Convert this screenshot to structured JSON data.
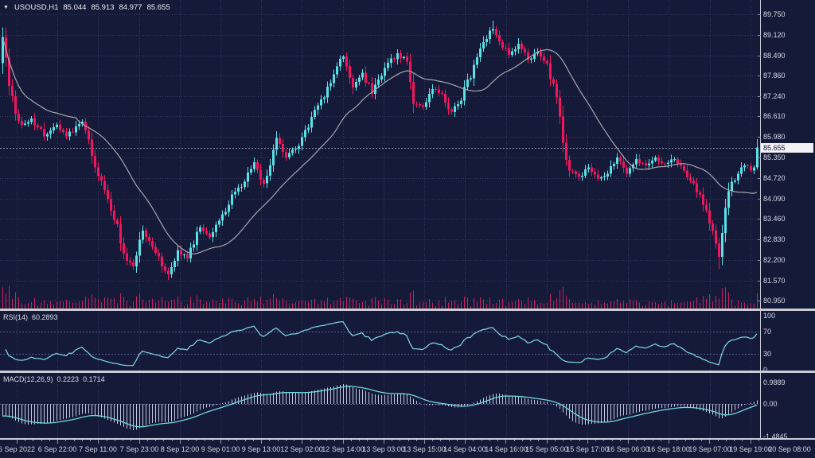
{
  "title": {
    "symbol_tf": "USOUSD,H1",
    "open": "85.044",
    "high": "85.913",
    "low": "84.977",
    "close": "85.655"
  },
  "price_axis": {
    "labels": [
      "89.750",
      "89.120",
      "88.490",
      "87.860",
      "87.240",
      "86.610",
      "85.980",
      "85.350",
      "84.720",
      "84.090",
      "83.460",
      "82.830",
      "82.200",
      "81.570",
      "80.950"
    ],
    "current": "85.655"
  },
  "rsi_pane": {
    "name": "RSI(14)",
    "value": "60.2893",
    "ticks": [
      "100",
      "70",
      "30",
      "0"
    ]
  },
  "macd_pane": {
    "name": "MACD(12,26,9)",
    "value1": "0.2223",
    "value2": "0.1714",
    "ticks": [
      "0.9889",
      "0.00",
      "-1.4845"
    ]
  },
  "time_axis": {
    "labels": [
      "6 Sep 2022",
      "6 Sep 22:00",
      "7 Sep 11:00",
      "7 Sep 23:00",
      "8 Sep 12:00",
      "9 Sep 01:00",
      "9 Sep 13:00",
      "12 Sep 02:00",
      "12 Sep 14:00",
      "13 Sep 03:00",
      "13 Sep 15:00",
      "14 Sep 04:00",
      "14 Sep 16:00",
      "15 Sep 05:00",
      "15 Sep 17:00",
      "16 Sep 06:00",
      "16 Sep 18:00",
      "19 Sep 07:00",
      "19 Sep 19:00",
      "20 Sep 08:00"
    ]
  },
  "colors": {
    "background": "#151a38",
    "grid": "#363c63",
    "bull": "#58e2e6",
    "bear": "#f1175e",
    "ma_line": "#a7a7b0",
    "rsi_line": "#7fdce8",
    "macd_signal": "#6fd8dc",
    "macd_histogram": "#c3c8de",
    "volume": "#cb2160",
    "level_line": "#5a6088",
    "price_line": "#8c92ac",
    "separator": "#c9cbd6",
    "axis_text": "#d6d8e4",
    "price_tag_bg": "#f2f2f5",
    "price_tag_text": "#131735"
  },
  "chart_data": {
    "type": "candlestick",
    "symbol": "USOUSD",
    "timeframe": "H1",
    "title": "USOUSD,H1 85.044 85.913 84.977 85.655",
    "ylim": [
      80.7,
      90.19
    ],
    "price_ticks": [
      89.75,
      89.12,
      88.49,
      87.86,
      87.24,
      86.61,
      85.98,
      85.35,
      84.72,
      84.09,
      83.46,
      82.83,
      82.2,
      81.57,
      80.95
    ],
    "current_price": 85.655,
    "x_labels": [
      "6 Sep 2022",
      "6 Sep 22:00",
      "7 Sep 11:00",
      "7 Sep 23:00",
      "8 Sep 12:00",
      "9 Sep 01:00",
      "9 Sep 13:00",
      "12 Sep 02:00",
      "12 Sep 14:00",
      "13 Sep 03:00",
      "13 Sep 15:00",
      "14 Sep 04:00",
      "14 Sep 16:00",
      "15 Sep 05:00",
      "15 Sep 17:00",
      "16 Sep 06:00",
      "16 Sep 18:00",
      "19 Sep 07:00",
      "19 Sep 19:00",
      "20 Sep 08:00"
    ],
    "candle_count": 238,
    "last_candle": {
      "open": 85.044,
      "high": 85.913,
      "low": 84.977,
      "close": 85.655
    },
    "close_anchors": [
      [
        0,
        89.05
      ],
      [
        2,
        87.55
      ],
      [
        4,
        86.7
      ],
      [
        6,
        86.35
      ],
      [
        9,
        86.55
      ],
      [
        13,
        86.0
      ],
      [
        17,
        86.35
      ],
      [
        20,
        86.0
      ],
      [
        25,
        86.45
      ],
      [
        28,
        85.4
      ],
      [
        32,
        84.35
      ],
      [
        36,
        83.3
      ],
      [
        38,
        82.4
      ],
      [
        41,
        82.0
      ],
      [
        44,
        83.1
      ],
      [
        47,
        82.6
      ],
      [
        50,
        82.0
      ],
      [
        52,
        81.75
      ],
      [
        55,
        82.5
      ],
      [
        58,
        82.25
      ],
      [
        62,
        83.2
      ],
      [
        65,
        82.9
      ],
      [
        69,
        83.6
      ],
      [
        73,
        84.3
      ],
      [
        76,
        84.6
      ],
      [
        79,
        85.2
      ],
      [
        82,
        84.55
      ],
      [
        86,
        85.95
      ],
      [
        89,
        85.35
      ],
      [
        93,
        85.7
      ],
      [
        97,
        86.6
      ],
      [
        101,
        87.2
      ],
      [
        104,
        87.9
      ],
      [
        107,
        88.45
      ],
      [
        110,
        87.5
      ],
      [
        113,
        87.95
      ],
      [
        116,
        87.3
      ],
      [
        120,
        88.1
      ],
      [
        124,
        88.55
      ],
      [
        127,
        88.3
      ],
      [
        129,
        87.0
      ],
      [
        132,
        86.9
      ],
      [
        135,
        87.45
      ],
      [
        138,
        87.3
      ],
      [
        141,
        86.75
      ],
      [
        144,
        87.1
      ],
      [
        148,
        88.2
      ],
      [
        151,
        88.9
      ],
      [
        154,
        89.3
      ],
      [
        156,
        88.9
      ],
      [
        159,
        88.5
      ],
      [
        162,
        88.85
      ],
      [
        165,
        88.35
      ],
      [
        168,
        88.6
      ],
      [
        171,
        88.25
      ],
      [
        174,
        87.2
      ],
      [
        176,
        85.8
      ],
      [
        178,
        84.95
      ],
      [
        181,
        84.75
      ],
      [
        184,
        85.05
      ],
      [
        187,
        84.7
      ],
      [
        190,
        84.85
      ],
      [
        193,
        85.35
      ],
      [
        196,
        84.85
      ],
      [
        199,
        85.3
      ],
      [
        202,
        85.1
      ],
      [
        205,
        85.35
      ],
      [
        208,
        85.15
      ],
      [
        211,
        85.3
      ],
      [
        214,
        84.95
      ],
      [
        217,
        84.55
      ],
      [
        220,
        83.9
      ],
      [
        223,
        83.1
      ],
      [
        225,
        82.3
      ],
      [
        227,
        83.8
      ],
      [
        229,
        84.6
      ],
      [
        231,
        84.85
      ],
      [
        233,
        85.1
      ],
      [
        235,
        84.95
      ],
      [
        236,
        85.05
      ],
      [
        237,
        85.655
      ]
    ],
    "extremes": [
      [
        52,
        "low",
        81.58
      ],
      [
        154,
        "high",
        89.55
      ],
      [
        225,
        "low",
        81.92
      ]
    ],
    "indicators": {
      "ma": {
        "type": "sma",
        "period": 24
      },
      "rsi": {
        "period": 14,
        "last": 60.2893,
        "levels": [
          70,
          30
        ],
        "range": [
          0,
          100
        ]
      },
      "macd": {
        "fast": 12,
        "slow": 26,
        "signal": 9,
        "last_macd": 0.2223,
        "last_signal": 0.1714,
        "axis_max": 0.9889,
        "axis_min": -1.4845
      }
    },
    "volume": {
      "shown": true
    }
  }
}
